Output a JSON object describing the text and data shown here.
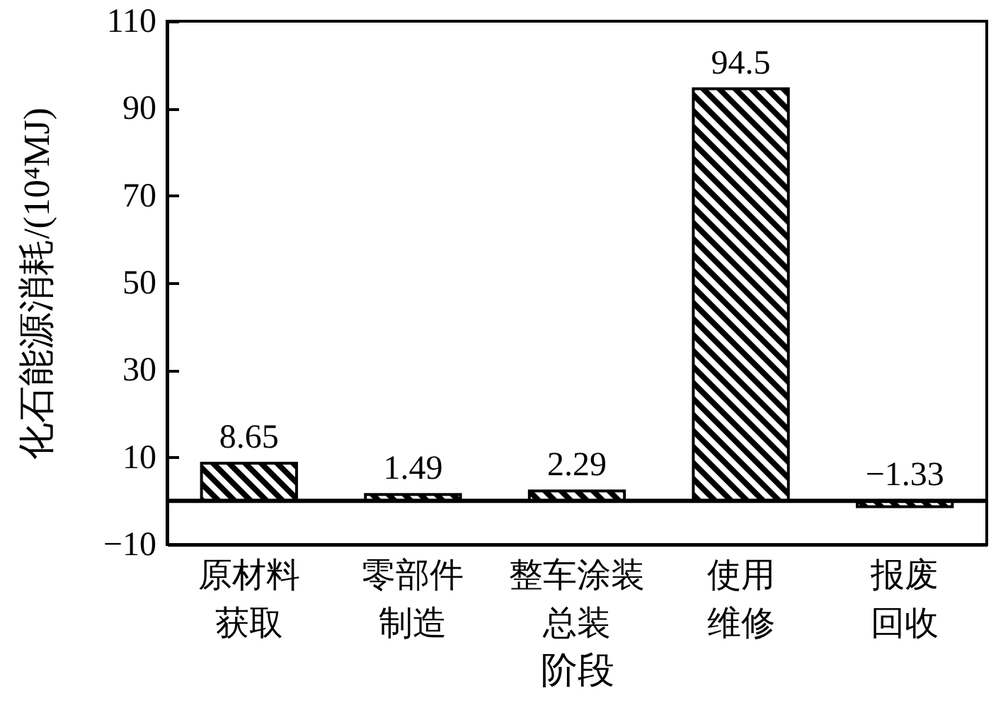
{
  "chart_data": {
    "type": "bar",
    "xlabel": "阶段",
    "ylabel": "化石能源消耗/(10⁴MJ)",
    "categories": [
      "原材料获取",
      "零部件制造",
      "整车涂装总装",
      "使用维修",
      "报废回收"
    ],
    "values": [
      8.65,
      1.49,
      2.29,
      94.5,
      -1.33
    ],
    "value_labels": [
      "8.65",
      "1.49",
      "2.29",
      "94.5",
      "−1.33"
    ],
    "color": "#000000",
    "ylim": [
      -10,
      110
    ],
    "yticks": [
      -10,
      10,
      30,
      50,
      70,
      90,
      110
    ],
    "grid": false,
    "ref_lines": [
      {
        "axis": "y",
        "value": 0,
        "color": "#000000"
      }
    ]
  }
}
